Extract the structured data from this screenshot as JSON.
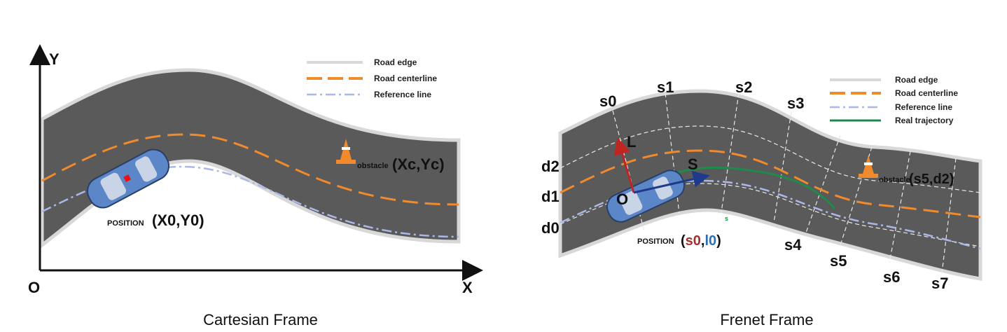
{
  "cartesian": {
    "caption": "Cartesian Frame",
    "axis_y": "Y",
    "axis_x": "X",
    "origin": "O",
    "legend": {
      "road_edge": "Road edge",
      "road_centerline": "Road centerline",
      "reference_line": "Reference line"
    },
    "position_label": "POSITION",
    "position_value": "(X0,Y0)",
    "obstacle_label": "obstacle",
    "obstacle_value": "(Xc,Yc)"
  },
  "frenet": {
    "caption": "Frenet Frame",
    "legend": {
      "road_edge": "Road edge",
      "road_centerline": "Road centerline",
      "reference_line": "Reference line",
      "real_trajectory": "Real trajectory"
    },
    "s_labels": [
      "s0",
      "s1",
      "s2",
      "s3",
      "s4",
      "s5",
      "s6",
      "s7"
    ],
    "d_labels": [
      "d2",
      "d1",
      "d0"
    ],
    "vector_l": "L",
    "vector_s": "S",
    "origin": "O",
    "position_label": "POSITION",
    "position_open": "(",
    "position_s": "s0",
    "position_comma": ",",
    "position_l": "l0",
    "position_close": ")",
    "obstacle_label": "obstacle",
    "obstacle_value": "(s5,d2)",
    "trajectory_end_mark": "s"
  },
  "colors": {
    "road": "#5b5a5a",
    "edge": "#d8d8d8",
    "centerline": "#f08a2c",
    "reference": "#a9b8e8",
    "trajectory": "#1f8a4c",
    "vector_l": "#c0261f",
    "vector_s": "#1f3a8a",
    "car": "#5b86c8",
    "s0_color": "#a5302a",
    "l0_color": "#2b6fb5"
  }
}
